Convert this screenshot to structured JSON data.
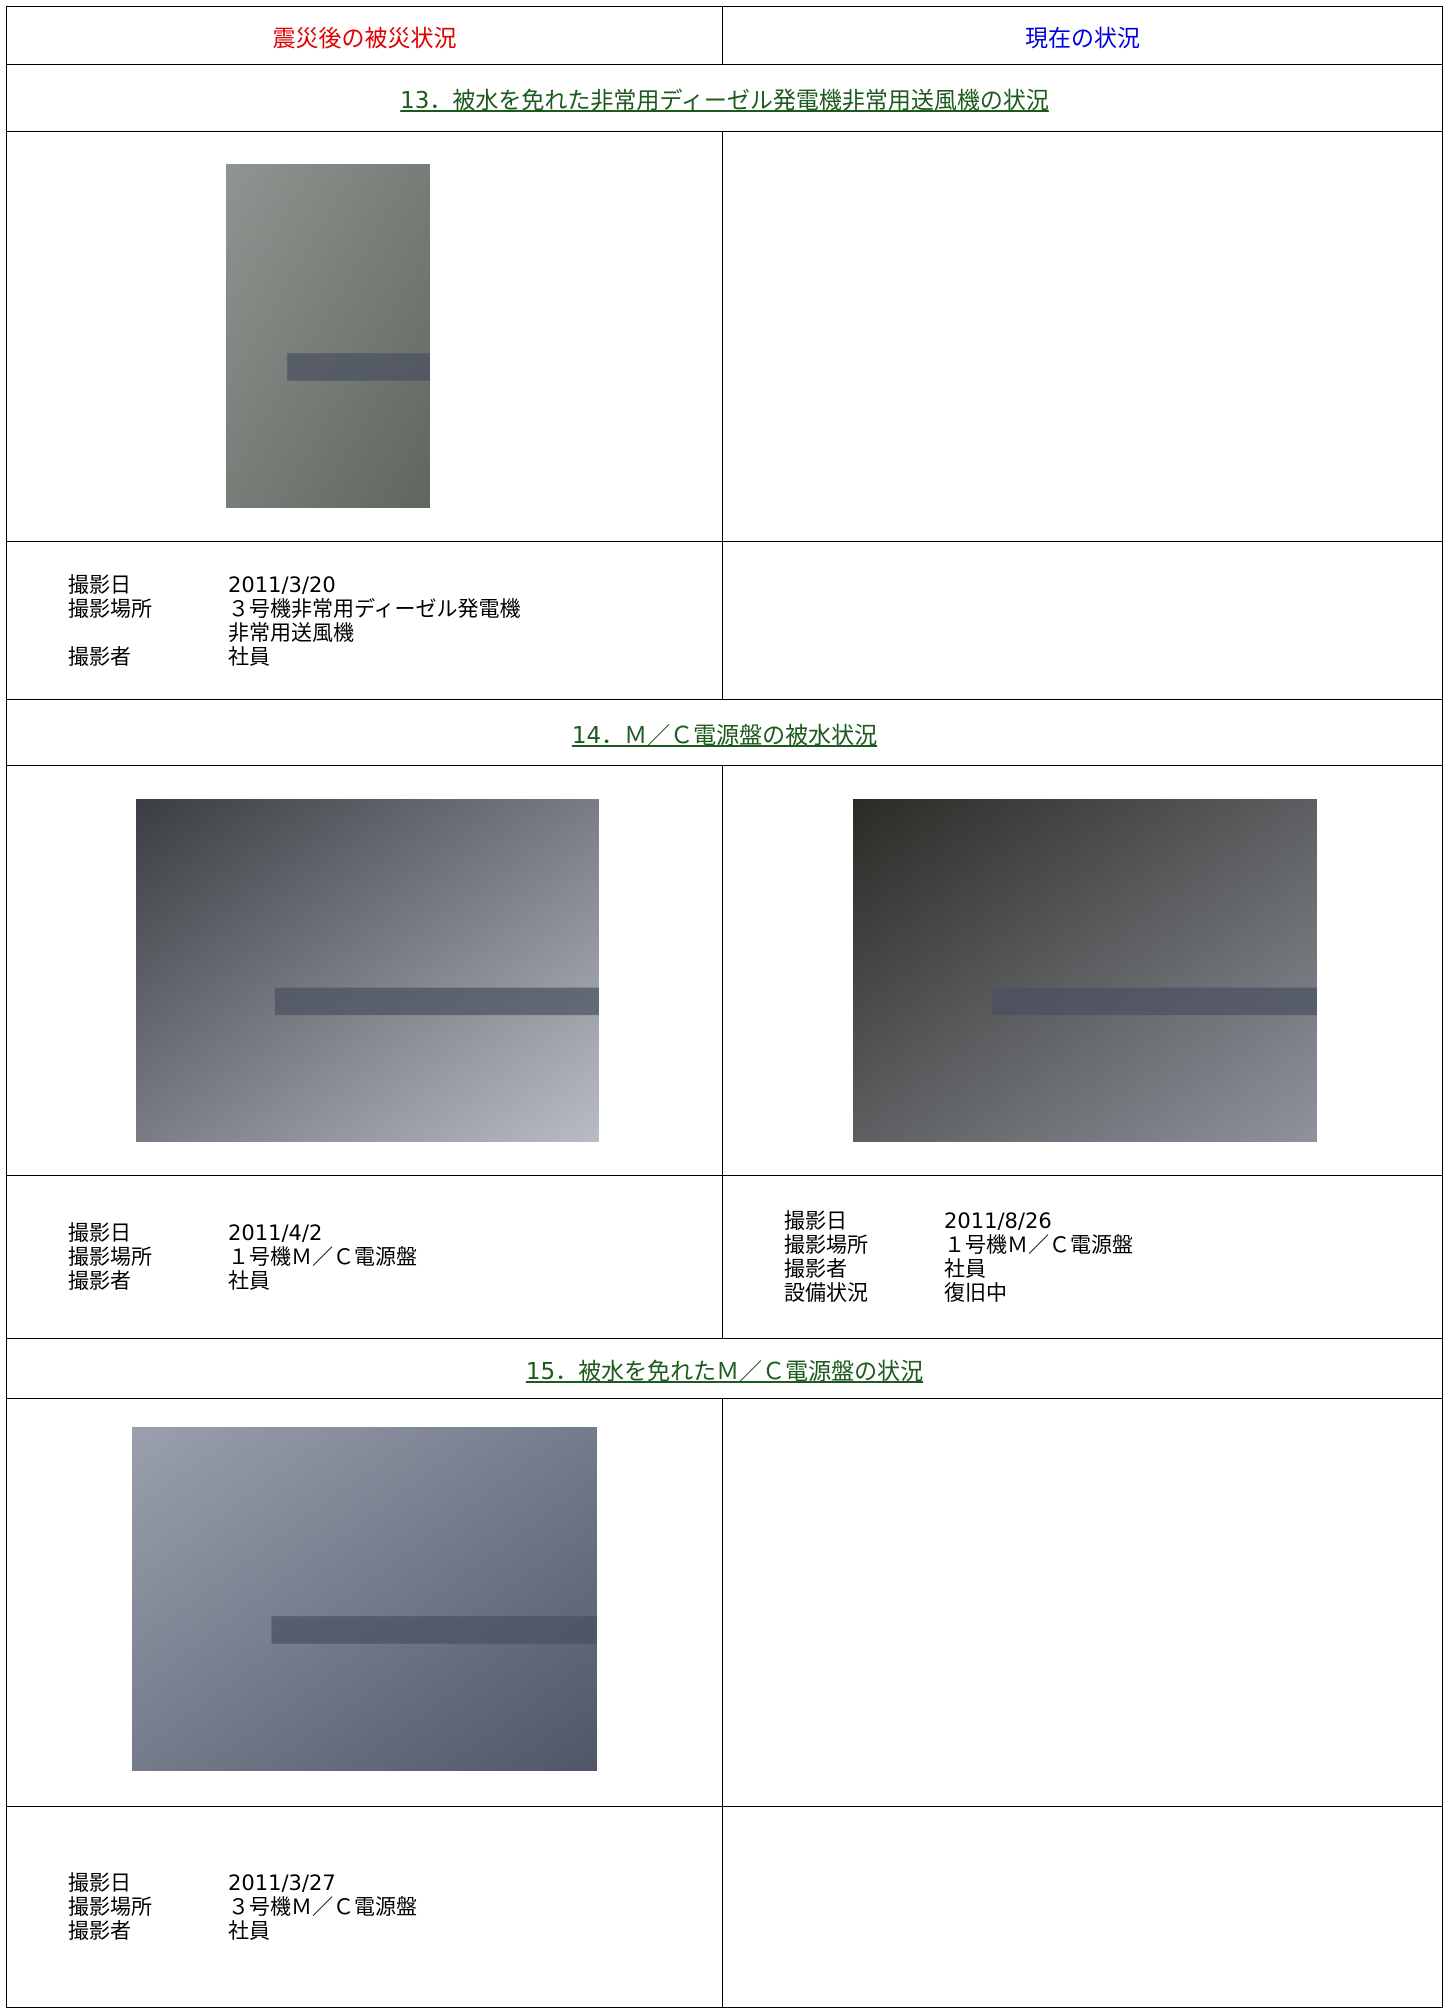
{
  "header": {
    "columns": [
      "震災後の被災状況",
      "現在の状況"
    ]
  },
  "sections": [
    {
      "title": "13．被水を免れた非常用ディーゼル発電機非常用送風機の状況",
      "left": {
        "info": [
          {
            "label": "撮影日",
            "value": [
              "2011/3/20"
            ]
          },
          {
            "label": "撮影場所",
            "value": [
              "３号機非常用ディーゼル発電機",
              "非常用送風機"
            ]
          },
          {
            "label": "撮影者",
            "value": [
              "社員"
            ]
          }
        ]
      },
      "right": {
        "info": []
      }
    },
    {
      "title": "14．Ｍ／Ｃ電源盤の被水状況",
      "left": {
        "info": [
          {
            "label": "撮影日",
            "value": [
              "2011/4/2"
            ]
          },
          {
            "label": "撮影場所",
            "value": [
              "１号機Ｍ／Ｃ電源盤"
            ]
          },
          {
            "label": "撮影者",
            "value": [
              "社員"
            ]
          }
        ]
      },
      "right": {
        "info": [
          {
            "label": "撮影日",
            "value": [
              "2011/8/26"
            ]
          },
          {
            "label": "撮影場所",
            "value": [
              "１号機Ｍ／Ｃ電源盤"
            ]
          },
          {
            "label": "撮影者",
            "value": [
              "社員"
            ]
          },
          {
            "label": "設備状況",
            "value": [
              "復旧中"
            ]
          }
        ]
      }
    },
    {
      "title": "15．被水を免れたＭ／Ｃ電源盤の状況",
      "left": {
        "info": [
          {
            "label": "撮影日",
            "value": [
              "2011/3/27"
            ]
          },
          {
            "label": "撮影場所",
            "value": [
              "３号機Ｍ／Ｃ電源盤"
            ]
          },
          {
            "label": "撮影者",
            "value": [
              "社員"
            ]
          }
        ]
      },
      "right": {
        "info": []
      }
    }
  ]
}
